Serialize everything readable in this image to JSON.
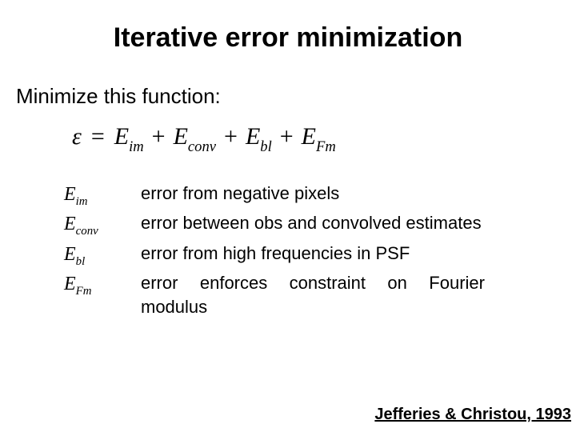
{
  "title": "Iterative error minimization",
  "subtitle": "Minimize this function:",
  "equation": {
    "lhs": "ε",
    "terms": [
      {
        "base": "E",
        "sub": "im"
      },
      {
        "base": "E",
        "sub": "conv"
      },
      {
        "base": "E",
        "sub": "bl"
      },
      {
        "base": "E",
        "sub": "Fm"
      }
    ]
  },
  "definitions": [
    {
      "termBase": "E",
      "termSub": "im",
      "desc": "error from negative pixels"
    },
    {
      "termBase": "E",
      "termSub": "conv",
      "desc": "error between obs and convolved estimates"
    },
    {
      "termBase": "E",
      "termSub": "bl",
      "desc": "error from high frequencies in PSF"
    },
    {
      "termBase": "E",
      "termSub": "Fm",
      "desc": "error enforces constraint on Fourier modulus"
    }
  ],
  "citation": "Jefferies & Christou, 1993",
  "colors": {
    "background": "#ffffff",
    "text": "#000000"
  },
  "typography": {
    "titleFontSize": 34,
    "subtitleFontSize": 26,
    "equationFontSize": 30,
    "defFontSize": 22,
    "citationFontSize": 20,
    "slideFontFamily": "Comic Sans MS",
    "mathFontFamily": "Georgia/Times",
    "defFontFamily": "Arial"
  }
}
